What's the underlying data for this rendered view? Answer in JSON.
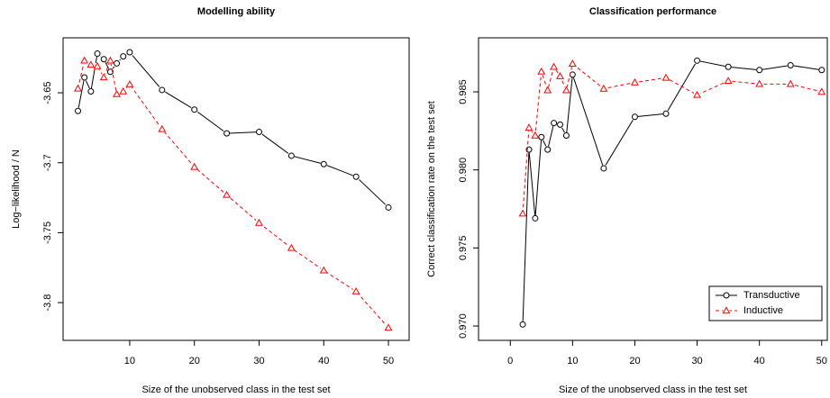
{
  "chart_data": [
    {
      "type": "line",
      "title": "Modelling ability",
      "x_label": "Size of the unobserved class in the test set",
      "y_label": "Log−likelihood / N",
      "x": [
        2,
        3,
        4,
        5,
        6,
        7,
        8,
        9,
        10,
        15,
        20,
        25,
        30,
        35,
        40,
        45,
        50
      ],
      "series": [
        {
          "name": "Transductive",
          "color": "#000000",
          "marker": "circle",
          "dash": false,
          "values": [
            -3.663,
            -3.639,
            -3.649,
            -3.622,
            -3.626,
            -3.635,
            -3.629,
            -3.624,
            -3.621,
            -3.648,
            -3.662,
            -3.679,
            -3.678,
            -3.695,
            -3.701,
            -3.71,
            -3.732
          ]
        },
        {
          "name": "Inductive",
          "color": "#ff0000",
          "marker": "triangle",
          "dash": true,
          "values": [
            -3.647,
            -3.627,
            -3.63,
            -3.631,
            -3.639,
            -3.627,
            -3.651,
            -3.649,
            -3.644,
            -3.676,
            -3.703,
            -3.723,
            -3.743,
            -3.761,
            -3.777,
            -3.792,
            -3.818
          ]
        }
      ],
      "xlim": [
        -0.3,
        53.2
      ],
      "xticks": [
        10,
        20,
        30,
        40,
        50
      ],
      "ylim": [
        -3.827,
        -3.6107
      ],
      "yticks": [
        -3.65,
        -3.7,
        -3.75,
        -3.8
      ]
    },
    {
      "type": "line",
      "title": "Classification performance",
      "x_label": "Size of the unobserved class in the test set",
      "y_label": "Correct classification rate on the test set",
      "x": [
        2,
        3,
        4,
        5,
        6,
        7,
        8,
        9,
        10,
        15,
        20,
        25,
        30,
        35,
        40,
        45,
        50
      ],
      "series": [
        {
          "name": "Transductive",
          "color": "#000000",
          "marker": "circle",
          "dash": false,
          "values": [
            0.9701,
            0.9813,
            0.9769,
            0.9821,
            0.9813,
            0.983,
            0.9829,
            0.9822,
            0.9861,
            0.9801,
            0.9834,
            0.9836,
            0.987,
            0.9866,
            0.9864,
            0.9867,
            0.9864
          ]
        },
        {
          "name": "Inductive",
          "color": "#ff0000",
          "marker": "triangle",
          "dash": true,
          "values": [
            0.9772,
            0.9827,
            0.9822,
            0.9863,
            0.9851,
            0.9866,
            0.986,
            0.9851,
            0.9868,
            0.9852,
            0.9856,
            0.9859,
            0.9848,
            0.9857,
            0.9855,
            0.9855,
            0.985
          ]
        }
      ],
      "xlim": [
        -5.1,
        50.9
      ],
      "xticks": [
        0,
        10,
        20,
        30,
        40,
        50
      ],
      "ylim": [
        0.96908,
        0.98846
      ],
      "yticks": [
        {
          "value": 0.97,
          "label": "0.970"
        },
        {
          "value": 0.975,
          "label": "0.975"
        },
        {
          "value": 0.98,
          "label": "0.980"
        },
        {
          "value": 0.985,
          "label": "0.985"
        }
      ],
      "legend": "bottom right"
    }
  ]
}
